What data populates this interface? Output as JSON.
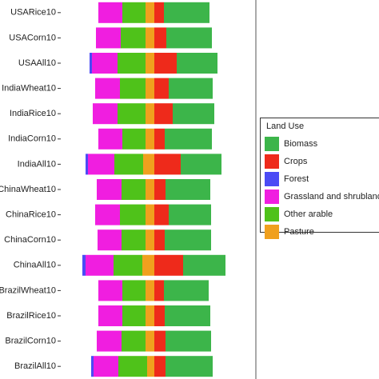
{
  "chart_data": {
    "type": "bar",
    "orientation": "horizontal",
    "stacked": true,
    "categories": [
      "USARice10",
      "USACorn10",
      "USAAll10",
      "IndiaWheat10",
      "IndiaRice10",
      "IndiaCorn10",
      "IndiaAll10",
      "ChinaWheat10",
      "ChinaRice10",
      "ChinaCorn10",
      "ChinaAll10",
      "BrazilWheat10",
      "BrazilRice10",
      "BrazilCorn10",
      "BrazilAll10"
    ],
    "series": [
      {
        "name": "Biomass",
        "color": "#3cb54a",
        "values": [
          57,
          57,
          51,
          55,
          52,
          59,
          51,
          56,
          53,
          58,
          53,
          56,
          57,
          57,
          59
        ]
      },
      {
        "name": "Crops",
        "color": "#ee2a1b",
        "values": [
          12,
          15,
          28,
          18,
          23,
          13,
          33,
          14,
          18,
          13,
          36,
          12,
          13,
          14,
          14
        ]
      },
      {
        "name": "Forest",
        "color": "#4b4bf5",
        "values": [
          0,
          0,
          -3,
          0,
          0,
          0,
          -3,
          0,
          0,
          0,
          -4,
          0,
          0,
          0,
          -3
        ]
      },
      {
        "name": "Grassland and shrubland",
        "color": "#f01ee0",
        "values": [
          -30,
          -31,
          -32,
          -31,
          -31,
          -30,
          -33,
          -31,
          -31,
          -30,
          -35,
          -30,
          -30,
          -31,
          -31
        ]
      },
      {
        "name": "Other arable",
        "color": "#4fc21a",
        "values": [
          -29,
          -31,
          -35,
          -32,
          -35,
          -29,
          -36,
          -30,
          -32,
          -30,
          -36,
          -29,
          -29,
          -30,
          -36
        ]
      },
      {
        "name": "Pasture",
        "color": "#f0a01e",
        "values": [
          -11,
          -11,
          -11,
          -11,
          -11,
          -11,
          -14,
          -11,
          -11,
          -11,
          -15,
          -11,
          -11,
          -11,
          -9
        ]
      }
    ],
    "xlim": [
      -115,
      127
    ],
    "legend_title": "Land Use",
    "legend": "right"
  }
}
